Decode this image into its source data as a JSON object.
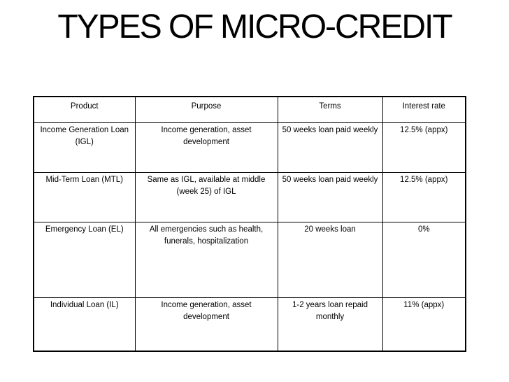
{
  "slide": {
    "title": "TYPES OF MICRO-CREDIT"
  },
  "table": {
    "header": [
      "Product",
      "Purpose",
      "Terms",
      "Interest rate"
    ],
    "rows": [
      [
        "Income Generation Loan\n(IGL)",
        "Income generation, asset\ndevelopment",
        "50 weeks loan paid weekly",
        "12.5% (appx)"
      ],
      [
        "Mid-Term Loan (MTL)",
        "Same as IGL, available at middle\n(week 25) of IGL",
        "50 weeks loan paid weekly",
        "12.5% (appx)"
      ],
      [
        "Emergency Loan (EL)",
        "All emergencies such as health,\nfunerals, hospitalization",
        "20 weeks loan",
        "0%"
      ],
      [
        "Individual Loan (IL)",
        "Income generation, asset\ndevelopment",
        "1-2 years loan repaid\nmonthly",
        "11% (appx)"
      ]
    ]
  },
  "colors": {
    "background": "#ffffff",
    "text": "#000000",
    "border": "#000000"
  }
}
